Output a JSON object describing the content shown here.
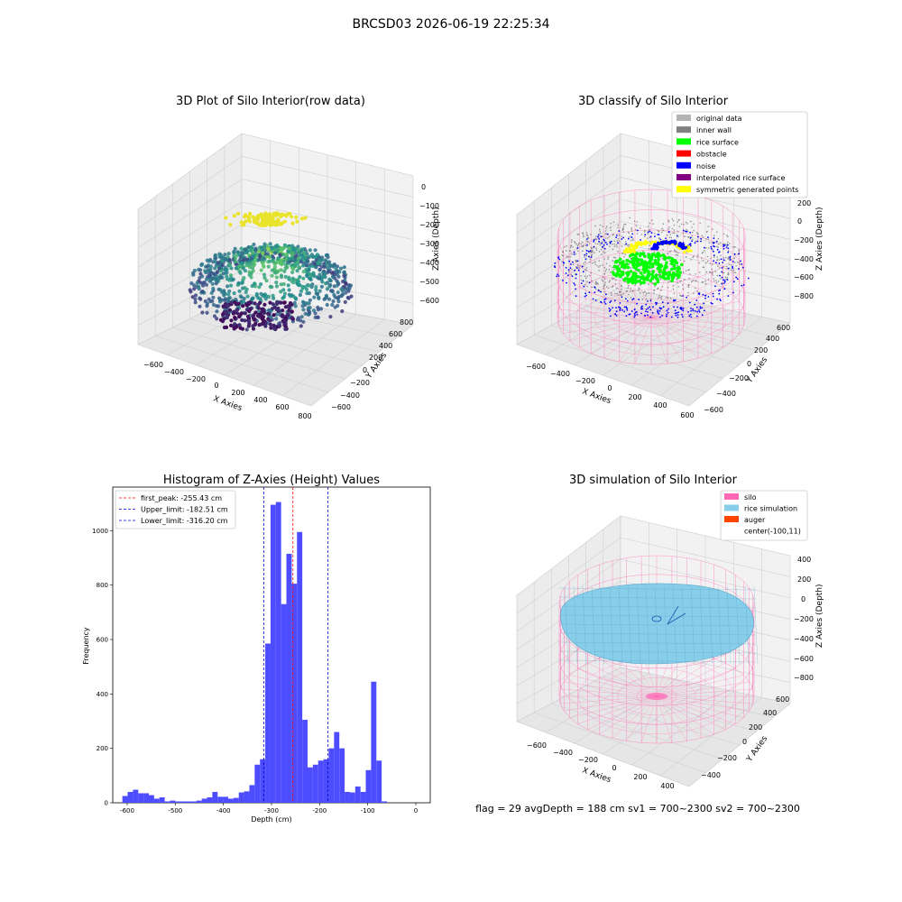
{
  "suptitle": "BRCSD03 2026-06-19 22:25:34",
  "footer": "flag = 29  avgDepth = 188 cm  sv1 = 700~2300  sv2 = 700~2300",
  "colors": {
    "hist_bar": "#4d4dff",
    "first_peak_line": "#ff0000",
    "limit_line": "#0000cc",
    "silo": "#ff69b4",
    "rice_simulation": "#87ceeb",
    "auger": "#ff4500",
    "original_data": "#b3b3b3",
    "inner_wall": "#808080",
    "rice_surface": "#00ff00",
    "obstacle": "#ff0000",
    "noise": "#0000ff",
    "interpolated": "#800080",
    "symmetric": "#ffff00"
  },
  "chart_data": [
    {
      "type": "scatter",
      "projection": "3d",
      "title": "3D Plot of Silo Interior(row data)",
      "xlabel": "X Axies",
      "ylabel": "Y Axies",
      "zlabel": "Z Axies (Depth)",
      "x_ticks": [
        "−600",
        "−400",
        "−200",
        "0",
        "200",
        "400",
        "600",
        "800"
      ],
      "y_ticks": [
        "−600",
        "−400",
        "−200",
        "0",
        "200",
        "400",
        "600",
        "800"
      ],
      "z_ticks": [
        "0",
        "−100",
        "−200",
        "−300",
        "−400",
        "−500",
        "−600"
      ],
      "colormap": "viridis (by depth)"
    },
    {
      "type": "scatter",
      "projection": "3d",
      "title": "3D classify of Silo Interior",
      "xlabel": "X Axies",
      "ylabel": "Y Axies",
      "zlabel": "Z Axies (Depth)",
      "x_ticks": [
        "−600",
        "−400",
        "−200",
        "0",
        "200",
        "400",
        "600"
      ],
      "y_ticks": [
        "−600",
        "−400",
        "−200",
        "0",
        "200",
        "400",
        "600"
      ],
      "z_ticks": [
        "200",
        "0",
        "−200",
        "−400",
        "−600",
        "−800"
      ],
      "legend": [
        "original data",
        "inner wall",
        "rice surface",
        "obstacle",
        "noise",
        "interpolated rice surface",
        "symmetric generated points"
      ],
      "legend_position": "top-right"
    },
    {
      "type": "bar",
      "title": "Histogram of Z-Axies (Height) Values",
      "xlabel": "Depth (cm)",
      "ylabel": "Frequency",
      "xlim": [
        -630,
        30
      ],
      "ylim": [
        0,
        1160
      ],
      "x_ticks": [
        -600,
        -500,
        -400,
        -300,
        -200,
        -100,
        0
      ],
      "y_ticks": [
        0,
        200,
        400,
        600,
        800,
        1000
      ],
      "bin_width": 11,
      "bin_start": -610,
      "values": [
        25,
        40,
        48,
        35,
        35,
        28,
        15,
        20,
        5,
        8,
        5,
        5,
        5,
        5,
        8,
        15,
        20,
        40,
        22,
        22,
        15,
        18,
        38,
        42,
        65,
        140,
        160,
        585,
        1095,
        1105,
        730,
        915,
        805,
        995,
        305,
        130,
        140,
        155,
        160,
        200,
        260,
        200,
        40,
        38,
        60,
        40,
        120,
        445,
        155,
        5
      ],
      "vlines": [
        {
          "label": "first_peak: -255.43 cm",
          "x": -255.43,
          "style": "red dashed"
        },
        {
          "label": "Upper_limit: -182.51 cm",
          "x": -182.51,
          "style": "blue dashed"
        },
        {
          "label": "Lower_limit: -316.20 cm",
          "x": -316.2,
          "style": "blue dashed"
        }
      ],
      "legend_position": "top-left"
    },
    {
      "type": "surface",
      "projection": "3d",
      "title": "3D simulation of Silo Interior",
      "xlabel": "X Axies",
      "ylabel": "Y Axies",
      "zlabel": "Z Axies (Depth)",
      "x_ticks": [
        "−600",
        "−400",
        "−200",
        "0",
        "200",
        "400"
      ],
      "y_ticks": [
        "−400",
        "−200",
        "0",
        "200",
        "400",
        "600"
      ],
      "z_ticks": [
        "400",
        "200",
        "0",
        "−200",
        "−400",
        "−600",
        "−800"
      ],
      "legend": [
        "silo",
        "rice simulation",
        "auger",
        "center(-100,11)"
      ],
      "legend_position": "top-right"
    }
  ]
}
